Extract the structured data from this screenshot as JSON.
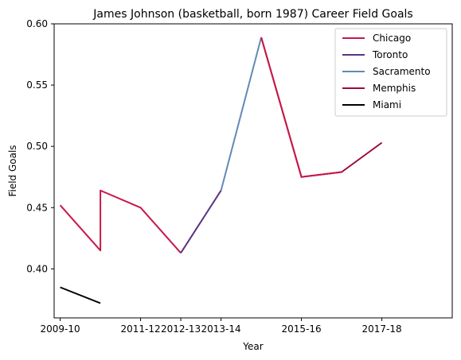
{
  "chart_data": {
    "type": "line",
    "title": "James Johnson (basketball, born 1987) Career Field Goals",
    "xlabel": "Year",
    "ylabel": "Field Goals",
    "x_ticks": [
      "2009-10",
      "2011-12",
      "2012-13",
      "2013-14",
      "2015-16",
      "2017-18"
    ],
    "y_ticks": [
      "0.40",
      "0.45",
      "0.50",
      "0.55",
      "0.60"
    ],
    "ylim": [
      0.36,
      0.6
    ],
    "grid": false,
    "legend_position": "top-right",
    "series": [
      {
        "name": "Chicago",
        "color": "#c8184a",
        "points": [
          {
            "x": "2009-10",
            "y": 0.452
          },
          {
            "x": "2010-11",
            "y": 0.415
          },
          {
            "x": "2010-11",
            "y": 0.464
          },
          {
            "x": "2011-12",
            "y": 0.45
          },
          {
            "x": "2012-13",
            "y": 0.413
          }
        ]
      },
      {
        "name": "Toronto",
        "color": "#5a3380",
        "points": [
          {
            "x": "2012-13",
            "y": 0.413
          },
          {
            "x": "2013-14",
            "y": 0.464
          }
        ]
      },
      {
        "name": "Sacramento",
        "color": "#6389b6",
        "points": [
          {
            "x": "2013-14",
            "y": 0.464
          },
          {
            "x": "2014-15",
            "y": 0.589
          }
        ]
      },
      {
        "name": "Memphis",
        "color": "#9d0a3c",
        "points": [
          {
            "x": "2014-15",
            "y": 0.589
          },
          {
            "x": "2015-16",
            "y": 0.475
          },
          {
            "x": "2016-17",
            "y": 0.479
          },
          {
            "x": "2017-18",
            "y": 0.503
          }
        ]
      },
      {
        "name": "Miami",
        "color": "#000000",
        "points": [
          {
            "x": "2009-10",
            "y": 0.385
          },
          {
            "x": "2010-11",
            "y": 0.372
          }
        ]
      }
    ],
    "overlay_segments": [
      {
        "color": "#c8184a",
        "points": [
          {
            "x": "2014-15",
            "y": 0.589
          },
          {
            "x": "2015-16",
            "y": 0.475
          },
          {
            "x": "2016-17",
            "y": 0.479
          }
        ]
      }
    ]
  }
}
